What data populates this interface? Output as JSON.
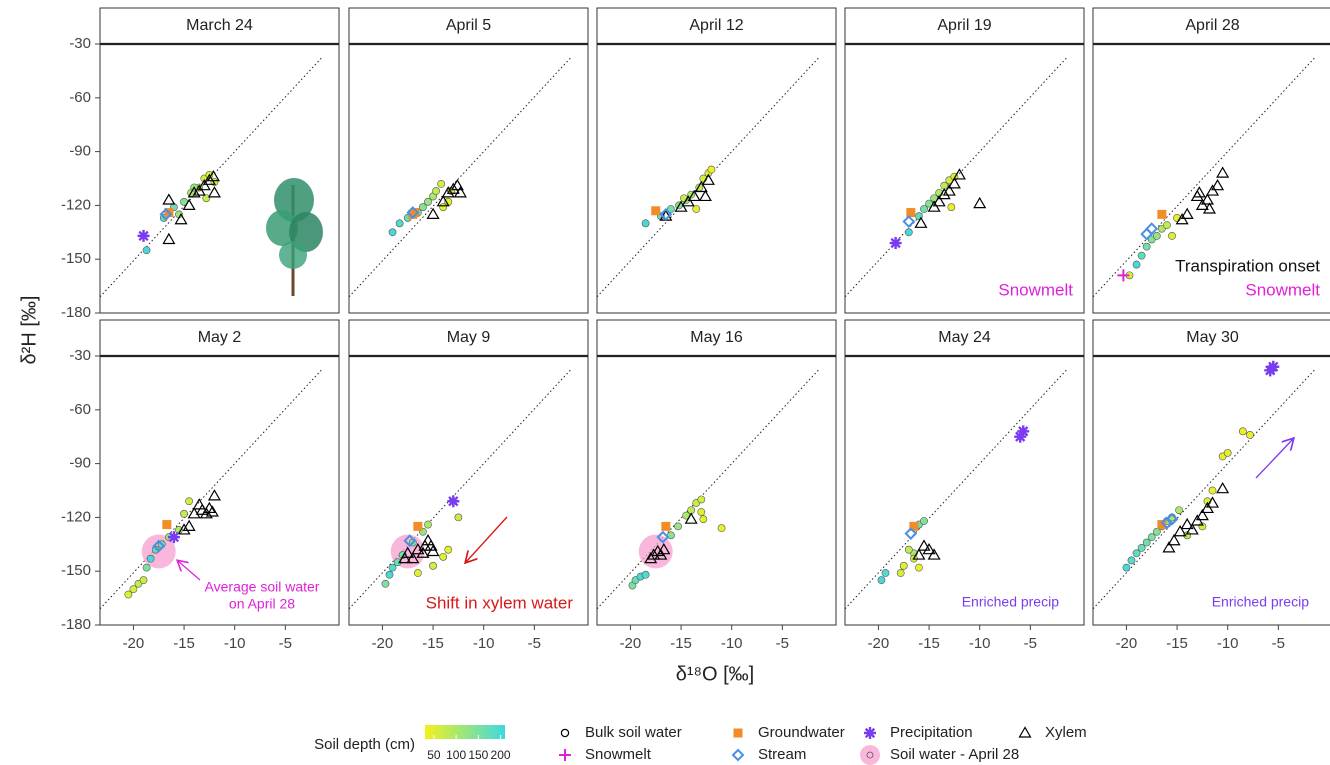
{
  "chart_data": {
    "type": "scatter",
    "x_label": "δ¹⁸O [‰]",
    "y_label": "δ²H [‰]",
    "xlim": [
      -23.3,
      0.3
    ],
    "ylim": [
      -180,
      -30
    ],
    "xticks": [
      -20,
      -15,
      -10,
      -5
    ],
    "yticks": [
      -180,
      -150,
      -120,
      -90,
      -60,
      -30
    ],
    "reference_line": {
      "x": [
        -23.3,
        -1.3
      ],
      "y": [
        -171,
        -37
      ]
    },
    "depth_title": "Soil depth (cm)",
    "depth_lim": [
      30,
      210
    ],
    "depth_ticks": [
      50,
      100,
      150,
      200
    ],
    "depth_colors": [
      "#f2f21c",
      "#3ed8e2"
    ],
    "groups": {
      "soil": {
        "name": "Bulk soil water",
        "color": "#000000"
      },
      "snowmelt": {
        "name": "Snowmelt",
        "color": "#e020d8"
      },
      "groundwater": {
        "name": "Groundwater",
        "color": "#f28c28"
      },
      "stream": {
        "name": "Stream",
        "color": "#4a8fe6"
      },
      "precipitation": {
        "name": "Precipitation",
        "color": "#7a3cf0"
      },
      "soil_apr28": {
        "name": "Soil water - April 28",
        "color": "#f7a0cf"
      },
      "xylem": {
        "name": "Xylem",
        "color": "#000000"
      }
    },
    "facets": [
      {
        "title": "March 24",
        "soil": {
          "x": [
            -18.7,
            -17,
            -16,
            -15.5,
            -15,
            -14.3,
            -13.5,
            -13,
            -12.5,
            -12,
            -12.8,
            -14
          ],
          "y": [
            -145,
            -127,
            -121,
            -125,
            -118,
            -113,
            -110,
            -105,
            -103,
            -107,
            -116,
            -110
          ],
          "depth": [
            200,
            180,
            160,
            120,
            140,
            100,
            80,
            60,
            40,
            50,
            70,
            120
          ]
        },
        "xylem": {
          "x": [
            -16.5,
            -16.5,
            -15.3,
            -14.5,
            -14,
            -13.5,
            -13,
            -12.5,
            -12,
            -12.1
          ],
          "y": [
            -117,
            -139,
            -128,
            -120,
            -113,
            -112,
            -109,
            -106,
            -113,
            -104
          ]
        },
        "groundwater": {
          "x": [
            -16.5
          ],
          "y": [
            -124
          ]
        },
        "stream": {
          "x": [
            -16.8
          ],
          "y": [
            -125
          ]
        },
        "precipitation": {
          "x": [
            -19
          ],
          "y": [
            -137
          ]
        },
        "annotations": []
      },
      {
        "title": "April 5",
        "soil": {
          "x": [
            -19,
            -18.3,
            -17.5,
            -16.5,
            -16,
            -15.5,
            -15,
            -14.7,
            -14.2,
            -14,
            -13.5,
            -13.2
          ],
          "y": [
            -135,
            -130,
            -127,
            -124,
            -121,
            -118,
            -115,
            -112,
            -108,
            -121,
            -118,
            -112
          ],
          "depth": [
            200,
            190,
            170,
            160,
            140,
            120,
            100,
            80,
            60,
            50,
            40,
            60
          ]
        },
        "xylem": {
          "x": [
            -15,
            -14,
            -13.5,
            -13,
            -12.6,
            -12.3
          ],
          "y": [
            -125,
            -118,
            -113,
            -111,
            -109,
            -113
          ]
        },
        "groundwater": {
          "x": [
            -16.8,
            -17
          ],
          "y": [
            -124,
            -125
          ]
        },
        "stream": {
          "x": [
            -17
          ],
          "y": [
            -124
          ]
        },
        "annotations": []
      },
      {
        "title": "April 12",
        "soil": {
          "x": [
            -18.5,
            -17,
            -16,
            -15.2,
            -14.5,
            -14,
            -13.2,
            -12.8,
            -12.3,
            -12,
            -13.5,
            -14.7
          ],
          "y": [
            -130,
            -126,
            -122,
            -120,
            -117,
            -114,
            -110,
            -105,
            -102,
            -100,
            -122,
            -116
          ],
          "depth": [
            200,
            180,
            160,
            140,
            120,
            100,
            80,
            60,
            50,
            40,
            45,
            70
          ]
        },
        "xylem": {
          "x": [
            -16.5,
            -15,
            -14.3,
            -13.7,
            -13,
            -12.3,
            -12.6
          ],
          "y": [
            -126,
            -121,
            -118,
            -115,
            -110,
            -106,
            -115
          ]
        },
        "groundwater": {
          "x": [
            -17.5
          ],
          "y": [
            -123
          ]
        },
        "stream": {
          "x": [
            -16.5
          ],
          "y": [
            -125
          ]
        },
        "annotations": []
      },
      {
        "title": "April 19",
        "soil": {
          "x": [
            -17,
            -16,
            -15.5,
            -15,
            -14.5,
            -14,
            -13.5,
            -13,
            -12.5,
            -12.8
          ],
          "y": [
            -135,
            -126,
            -122,
            -119,
            -116,
            -113,
            -109,
            -106,
            -104,
            -121
          ],
          "depth": [
            200,
            180,
            160,
            140,
            120,
            100,
            80,
            60,
            50,
            40
          ]
        },
        "xylem": {
          "x": [
            -15.8,
            -14.5,
            -14,
            -13.5,
            -13,
            -12.5,
            -12,
            -10
          ],
          "y": [
            -130,
            -121,
            -118,
            -114,
            -112,
            -108,
            -103,
            -119
          ]
        },
        "groundwater": {
          "x": [
            -16.8
          ],
          "y": [
            -124
          ]
        },
        "stream": {
          "x": [
            -17
          ],
          "y": [
            -129
          ]
        },
        "precipitation": {
          "x": [
            -18.3
          ],
          "y": [
            -141
          ]
        },
        "annotations": [
          {
            "text": "Snowmelt",
            "color": "#e020d8"
          }
        ]
      },
      {
        "title": "April 28",
        "soil": {
          "x": [
            -19.7,
            -19,
            -18.5,
            -18,
            -17.5,
            -17,
            -16.5,
            -16,
            -15.5,
            -15
          ],
          "y": [
            -159,
            -153,
            -148,
            -143,
            -139,
            -137,
            -133,
            -131,
            -137,
            -127
          ],
          "depth": [
            60,
            200,
            180,
            160,
            140,
            120,
            100,
            80,
            50,
            40
          ]
        },
        "xylem": {
          "x": [
            -14.5,
            -14,
            -13,
            -12.8,
            -12.5,
            -12,
            -11.8,
            -11.5,
            -11,
            -10.5
          ],
          "y": [
            -128,
            -125,
            -115,
            -113,
            -120,
            -117,
            -122,
            -112,
            -109,
            -102
          ]
        },
        "groundwater": {
          "x": [
            -16.5
          ],
          "y": [
            -125
          ]
        },
        "stream": {
          "x": [
            -18,
            -17.5
          ],
          "y": [
            -136,
            -133
          ]
        },
        "snowmelt": {
          "x": [
            -20.3
          ],
          "y": [
            -159
          ]
        },
        "annotations": [
          {
            "text": "Transpiration onset",
            "color": "#111111"
          },
          {
            "text": "Snowmelt",
            "color": "#e020d8"
          }
        ]
      },
      {
        "title": "May 2",
        "soil_apr28": {
          "x": [
            -17.5
          ],
          "y": [
            -139
          ]
        },
        "soil": {
          "x": [
            -20.5,
            -20,
            -19.5,
            -19,
            -18.7,
            -18.3,
            -17.8,
            -17.2,
            -16.5,
            -15.5,
            -15,
            -14.5
          ],
          "y": [
            -163,
            -160,
            -157,
            -155,
            -148,
            -143,
            -138,
            -135,
            -131,
            -127,
            -118,
            -111
          ],
          "depth": [
            50,
            60,
            80,
            70,
            150,
            200,
            180,
            160,
            120,
            100,
            80,
            60
          ]
        },
        "xylem": {
          "x": [
            -15,
            -14.5,
            -14,
            -13.5,
            -13.2,
            -12.8,
            -12.5,
            -12.2,
            -12
          ],
          "y": [
            -127,
            -125,
            -118,
            -113,
            -116,
            -118,
            -115,
            -117,
            -108
          ]
        },
        "groundwater": {
          "x": [
            -16.7
          ],
          "y": [
            -124
          ]
        },
        "stream": {
          "x": [
            -17.5
          ],
          "y": [
            -136
          ]
        },
        "precipitation": {
          "x": [
            -16
          ],
          "y": [
            -131
          ]
        },
        "annotations": [
          {
            "text": "Average soil water",
            "color": "#e020d8"
          },
          {
            "text": "on April 28",
            "color": "#e020d8"
          }
        ]
      },
      {
        "title": "May 9",
        "soil_apr28": {
          "x": [
            -17.5
          ],
          "y": [
            -139
          ]
        },
        "soil": {
          "x": [
            -19.7,
            -19.3,
            -19,
            -18.5,
            -18,
            -17,
            -16,
            -15.5,
            -15,
            -14,
            -13.5,
            -12.5,
            -16.5
          ],
          "y": [
            -157,
            -152,
            -148,
            -145,
            -141,
            -134,
            -128,
            -124,
            -147,
            -142,
            -138,
            -120,
            -151
          ],
          "depth": [
            150,
            200,
            190,
            170,
            160,
            140,
            120,
            100,
            60,
            50,
            40,
            70,
            50
          ]
        },
        "xylem": {
          "x": [
            -17.8,
            -17.5,
            -17,
            -16.5,
            -16,
            -15.8,
            -15.5,
            -15.2,
            -15
          ],
          "y": [
            -143,
            -140,
            -143,
            -138,
            -140,
            -136,
            -133,
            -136,
            -139
          ]
        },
        "groundwater": {
          "x": [
            -16.5
          ],
          "y": [
            -125
          ]
        },
        "stream": {
          "x": [
            -17.3
          ],
          "y": [
            -133
          ]
        },
        "precipitation": {
          "x": [
            -13
          ],
          "y": [
            -111
          ]
        },
        "annotations": [
          {
            "text": "Shift in xylem water",
            "color": "#d81818"
          }
        ]
      },
      {
        "title": "May 16",
        "soil_apr28": {
          "x": [
            -17.5
          ],
          "y": [
            -139
          ]
        },
        "soil": {
          "x": [
            -19.8,
            -19.5,
            -19,
            -18.5,
            -16,
            -15.3,
            -14.5,
            -14,
            -13.5,
            -13,
            -13,
            -12.8,
            -11
          ],
          "y": [
            -158,
            -155,
            -153,
            -152,
            -130,
            -125,
            -119,
            -116,
            -112,
            -110,
            -117,
            -121,
            -126
          ],
          "depth": [
            150,
            170,
            200,
            190,
            140,
            120,
            100,
            80,
            70,
            60,
            50,
            45,
            40
          ]
        },
        "xylem": {
          "x": [
            -18,
            -17.7,
            -17.3,
            -17,
            -16.7,
            -14
          ],
          "y": [
            -143,
            -141,
            -139,
            -141,
            -138,
            -121
          ]
        },
        "groundwater": {
          "x": [
            -16.5
          ],
          "y": [
            -125
          ]
        },
        "stream": {
          "x": [
            -16.8
          ],
          "y": [
            -131
          ]
        },
        "annotations": []
      },
      {
        "title": "May 24",
        "soil": {
          "x": [
            -19.7,
            -19.3,
            -17.8,
            -17.5,
            -16.5,
            -16,
            -15.5,
            -17,
            -16.5,
            -16
          ],
          "y": [
            -155,
            -151,
            -151,
            -147,
            -140,
            -124,
            -122,
            -138,
            -143,
            -148
          ],
          "depth": [
            200,
            190,
            60,
            50,
            100,
            160,
            140,
            80,
            70,
            40
          ]
        },
        "xylem": {
          "x": [
            -16,
            -15.5,
            -15,
            -14.5
          ],
          "y": [
            -141,
            -136,
            -138,
            -141
          ]
        },
        "groundwater": {
          "x": [
            -16.5
          ],
          "y": [
            -125
          ]
        },
        "stream": {
          "x": [
            -16.8
          ],
          "y": [
            -129
          ]
        },
        "precipitation": {
          "x": [
            -6,
            -5.7
          ],
          "y": [
            -75,
            -72
          ]
        },
        "annotations": [
          {
            "text": "Enriched precip",
            "color": "#7a3cf0"
          }
        ]
      },
      {
        "title": "May 30",
        "soil": {
          "x": [
            -20,
            -19.5,
            -19,
            -18.5,
            -18,
            -17.5,
            -17,
            -16.5,
            -16,
            -15.5,
            -14.8,
            -14,
            -12.5,
            -12,
            -11.5,
            -10.5,
            -10,
            -8.5,
            -7.8
          ],
          "y": [
            -148,
            -144,
            -140,
            -137,
            -134,
            -131,
            -128,
            -125,
            -122,
            -120,
            -116,
            -130,
            -125,
            -111,
            -105,
            -86,
            -84,
            -72,
            -74
          ],
          "depth": [
            200,
            190,
            180,
            170,
            160,
            150,
            140,
            130,
            120,
            110,
            100,
            80,
            60,
            50,
            40,
            45,
            45,
            40,
            40
          ]
        },
        "xylem": {
          "x": [
            -15.8,
            -15.3,
            -14.7,
            -14,
            -13.5,
            -13,
            -12.5,
            -12,
            -11.5,
            -10.5
          ],
          "y": [
            -137,
            -133,
            -128,
            -124,
            -127,
            -122,
            -119,
            -115,
            -112,
            -104
          ]
        },
        "groundwater": {
          "x": [
            -16.5
          ],
          "y": [
            -124
          ]
        },
        "stream": {
          "x": [
            -16,
            -15.5
          ],
          "y": [
            -123,
            -121
          ]
        },
        "precipitation": {
          "x": [
            -5.8,
            -5.5
          ],
          "y": [
            -38,
            -36
          ]
        },
        "annotations": [
          {
            "text": "Enriched precip",
            "color": "#7a3cf0"
          }
        ]
      }
    ]
  }
}
